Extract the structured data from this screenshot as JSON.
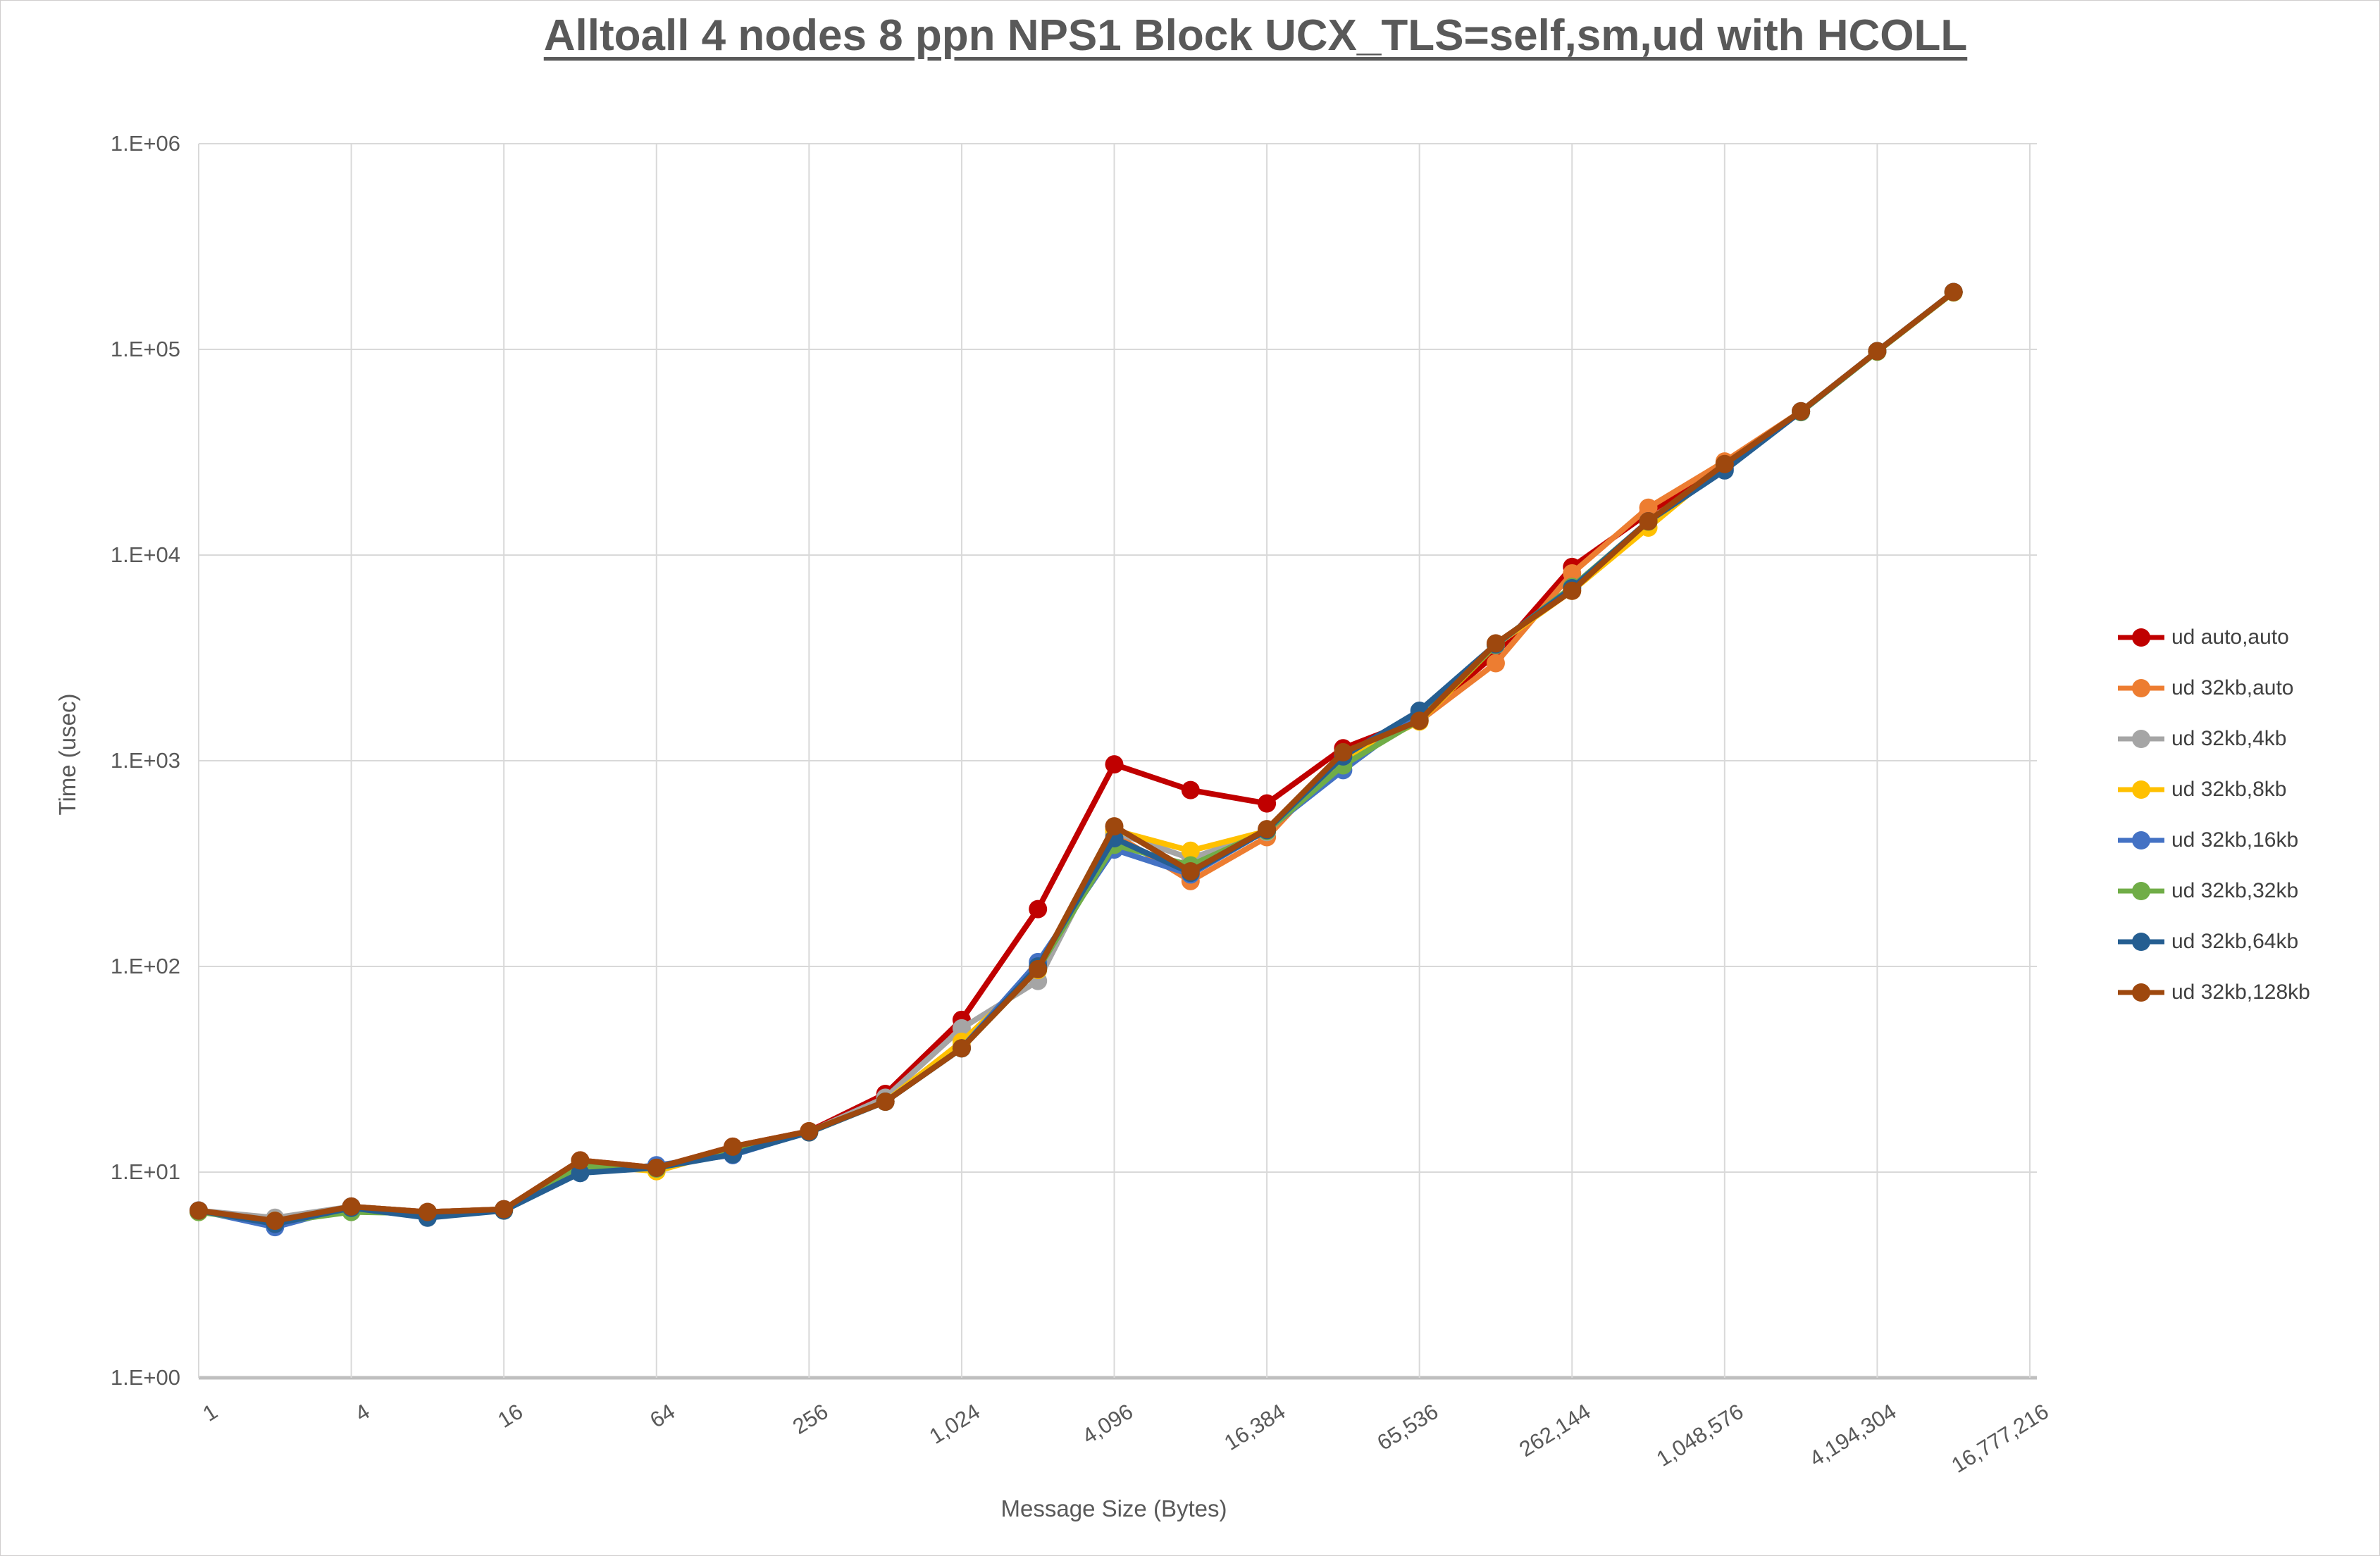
{
  "title": "Alltoall 4 nodes 8 ppn NPS1 Block UCX_TLS=self,sm,ud with HCOLL",
  "axes": {
    "y_label": "Time (usec)",
    "x_label": "Message Size (Bytes)"
  },
  "legend": {
    "position": "right",
    "items": [
      {
        "label": "ud auto,auto",
        "color": "#C00000"
      },
      {
        "label": "ud 32kb,auto",
        "color": "#ED7D31"
      },
      {
        "label": "ud 32kb,4kb",
        "color": "#A5A5A5"
      },
      {
        "label": "ud 32kb,8kb",
        "color": "#FFC000"
      },
      {
        "label": "ud 32kb,16kb",
        "color": "#4472C4"
      },
      {
        "label": "ud 32kb,32kb",
        "color": "#70AD47"
      },
      {
        "label": "ud 32kb,64kb",
        "color": "#255E91"
      },
      {
        "label": "ud 32kb,128kb",
        "color": "#9E480E"
      }
    ]
  },
  "chart_data": {
    "type": "line",
    "title": "Alltoall 4 nodes 8 ppn NPS1 Block UCX_TLS=self,sm,ud with HCOLL",
    "xlabel": "Message Size (Bytes)",
    "ylabel": "Time (usec)",
    "y_scale": "log10",
    "ylim": [
      1,
      1000000
    ],
    "y_tick_labels": [
      "1.E+00",
      "1.E+01",
      "1.E+02",
      "1.E+03",
      "1.E+04",
      "1.E+05",
      "1.E+06"
    ],
    "x_tick_labels": [
      "1",
      "4",
      "16",
      "64",
      "256",
      "1,024",
      "4,096",
      "16,384",
      "65,536",
      "262,144",
      "1,048,576",
      "4,194,304",
      "16,777,216"
    ],
    "grid": true,
    "x_axis_total_categories": 25,
    "x": [
      1,
      2,
      4,
      8,
      16,
      32,
      64,
      128,
      256,
      512,
      1024,
      2048,
      4096,
      8192,
      16384,
      32768,
      65536,
      131072,
      262144,
      524288,
      1048576,
      2097152,
      4194304,
      8388608
    ],
    "series": [
      {
        "name": "ud auto,auto",
        "color": "#C00000",
        "values": [
          6.5,
          5.8,
          6.8,
          6.4,
          6.6,
          11.4,
          10.5,
          13.3,
          15.8,
          24,
          55,
          190,
          960,
          720,
          620,
          1150,
          1600,
          3300,
          8750,
          16000,
          28000,
          50000,
          98000,
          190000
        ]
      },
      {
        "name": "ud 32kb,auto",
        "color": "#ED7D31",
        "values": [
          6.5,
          5.8,
          6.8,
          6.4,
          6.6,
          11.0,
          10.5,
          13.0,
          15.8,
          22,
          41,
          98,
          440,
          260,
          425,
          1060,
          1560,
          2980,
          8150,
          17000,
          28500,
          50000,
          98000,
          190000
        ]
      },
      {
        "name": "ud 32kb,4kb",
        "color": "#A5A5A5",
        "values": [
          6.5,
          6.0,
          6.8,
          6.4,
          6.6,
          10.8,
          10.4,
          13.0,
          15.7,
          23,
          50,
          85,
          450,
          335,
          450,
          1000,
          1570,
          3650,
          6800,
          14500,
          27500,
          50000,
          98000,
          190000
        ]
      },
      {
        "name": "ud 32kb,8kb",
        "color": "#FFC000",
        "values": [
          6.4,
          5.8,
          6.7,
          6.1,
          6.5,
          10.9,
          10.1,
          12.9,
          15.6,
          22,
          43,
          96,
          460,
          365,
          455,
          1020,
          1550,
          3650,
          6700,
          13600,
          27600,
          49800,
          97500,
          189000
        ]
      },
      {
        "name": "ud 32kb,16kb",
        "color": "#4472C4",
        "values": [
          6.5,
          5.4,
          6.8,
          6.3,
          6.6,
          9.9,
          10.8,
          12.1,
          15.7,
          22,
          40,
          105,
          370,
          280,
          460,
          900,
          1700,
          3650,
          7000,
          14600,
          26500,
          50000,
          98000,
          190000
        ]
      },
      {
        "name": "ud 32kb,32kb",
        "color": "#70AD47",
        "values": [
          6.4,
          5.7,
          6.4,
          6.3,
          6.5,
          10.7,
          10.4,
          12.9,
          15.7,
          22,
          40,
          97,
          390,
          310,
          455,
          950,
          1580,
          3660,
          7000,
          14550,
          27600,
          49500,
          97500,
          189500
        ]
      },
      {
        "name": "ud 32kb,64kb",
        "color": "#255E91",
        "values": [
          6.5,
          5.6,
          6.7,
          6.0,
          6.5,
          9.9,
          10.5,
          12.2,
          15.6,
          22,
          40,
          100,
          420,
          285,
          460,
          1050,
          1750,
          3680,
          6900,
          14600,
          25800,
          49800,
          98000,
          190000
        ]
      },
      {
        "name": "ud 32kb,128kb",
        "color": "#9E480E",
        "values": [
          6.5,
          5.8,
          6.8,
          6.4,
          6.6,
          11.4,
          10.5,
          13.3,
          15.8,
          22,
          40,
          97,
          480,
          290,
          465,
          1100,
          1565,
          3720,
          6700,
          14600,
          27700,
          50000,
          98000,
          190000
        ]
      }
    ]
  },
  "style": {
    "gridline_color": "#D9D9D9",
    "axis_line_color": "#BFBFBF",
    "text_color": "#595959",
    "title_color": "#595959",
    "background": "#FFFFFF"
  }
}
